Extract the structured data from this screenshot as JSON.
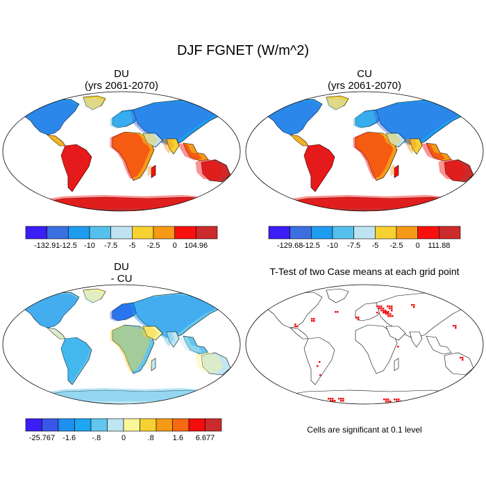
{
  "title": "DJF FGNET (W/m^2)",
  "panels": {
    "du": {
      "name": "DU",
      "period": "(yrs 2061-2070)"
    },
    "cu": {
      "name": "CU",
      "period": "(yrs 2061-2070)"
    },
    "diff": {
      "name": "DU",
      "sub": "- CU"
    },
    "ttest": {
      "title": "T-Test of two Case means at each grid point",
      "note": "Cells are significant at 0.1 level"
    }
  },
  "chart_data": [
    {
      "type": "heatmap",
      "title": "DU (yrs 2061-2070)",
      "colorbar": {
        "labels": [
          "-132.91",
          "-12.5",
          "-10",
          "-7.5",
          "-5",
          "-2.5",
          "0",
          "104.96"
        ],
        "colors": [
          "#3b1ef5",
          "#3c6fe0",
          "#1e9cf0",
          "#56c0ec",
          "#bfe3f0",
          "#f6d132",
          "#f59a16",
          "#f8100e",
          "#cc2b2b"
        ]
      }
    },
    {
      "type": "heatmap",
      "title": "CU (yrs 2061-2070)",
      "colorbar": {
        "labels": [
          "-129.68",
          "-12.5",
          "-10",
          "-7.5",
          "-5",
          "-2.5",
          "0",
          "111.88"
        ],
        "colors": [
          "#3b1ef5",
          "#3c6fe0",
          "#1e9cf0",
          "#56c0ec",
          "#bfe3f0",
          "#f6d132",
          "#f59a16",
          "#f8100e",
          "#cc2b2b"
        ]
      }
    },
    {
      "type": "heatmap",
      "title": "DU - CU",
      "colorbar": {
        "labels": [
          "-25.767",
          "-1.6",
          "-.8",
          "0",
          ".8",
          "1.6",
          "6.677"
        ],
        "colors": [
          "#3b1ef5",
          "#3a56e8",
          "#1e8ff0",
          "#1ea6f0",
          "#62c6ee",
          "#bfe6f2",
          "#fbf59a",
          "#f6d132",
          "#f59a16",
          "#f56a12",
          "#f20c0c",
          "#cc2b2b"
        ]
      }
    },
    {
      "type": "heatmap",
      "title": "T-Test of two Case means at each grid point",
      "note": "Cells are significant at 0.1 level"
    }
  ]
}
